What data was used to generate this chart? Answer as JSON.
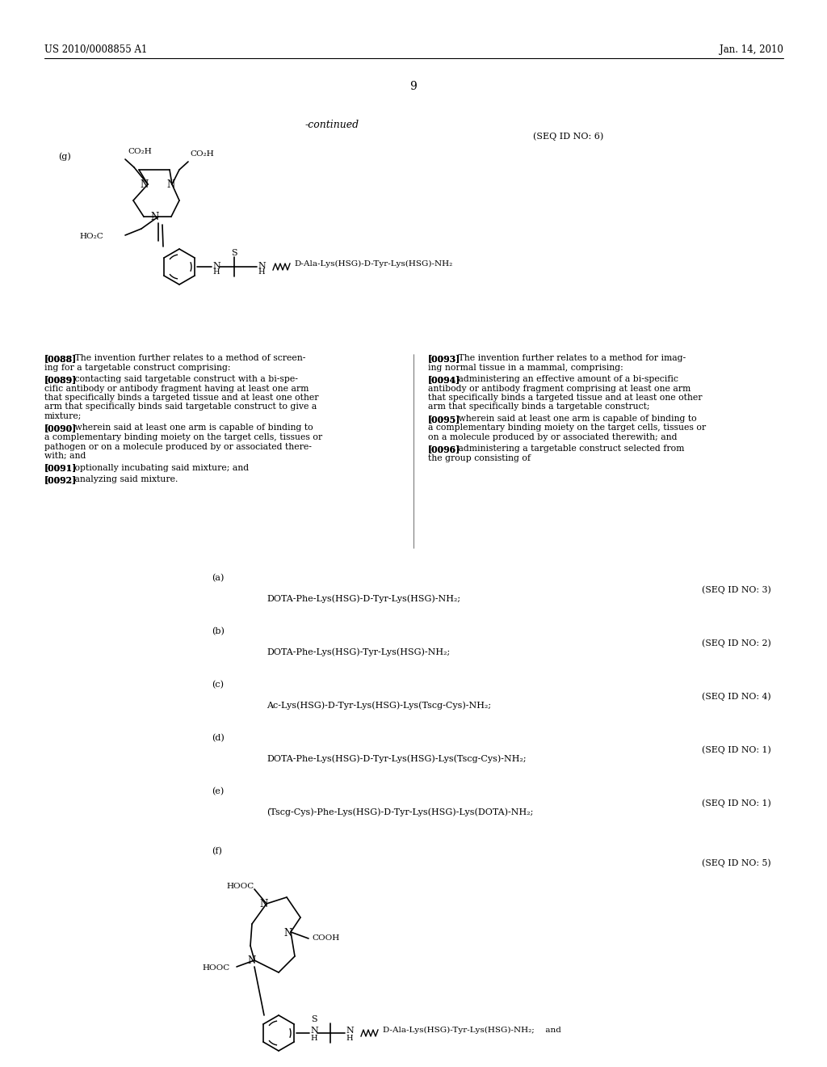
{
  "bg_color": "#ffffff",
  "header_left": "US 2010/0008855 A1",
  "header_right": "Jan. 14, 2010",
  "page_number": "9",
  "continued_label": "-continued",
  "seq_id_6": "(SEQ ID NO: 6)",
  "label_g": "(g)",
  "body_left": [
    [
      "[0088]",
      "   The invention further relates to a method of screen-\ning for a targetable construct comprising:"
    ],
    [
      "[0089]",
      "   contacting said targetable construct with a bi-spe-\ncific antibody or antibody fragment having at least one arm\nthat specifically binds a targeted tissue and at least one other\narm that specifically binds said targetable construct to give a\nmixture;"
    ],
    [
      "[0090]",
      "   wherein said at least one arm is capable of binding to\na complementary binding moiety on the target cells, tissues or\npathogen or on a molecule produced by or associated there-\nwith; and"
    ],
    [
      "[0091]",
      "   optionally incubating said mixture; and"
    ],
    [
      "[0092]",
      "   analyzing said mixture."
    ]
  ],
  "body_right": [
    [
      "[0093]",
      "   The invention further relates to a method for imag-\ning normal tissue in a mammal, comprising:"
    ],
    [
      "[0094]",
      "   administering an effective amount of a bi-specific\nantibody or antibody fragment comprising at least one arm\nthat specifically binds a targeted tissue and at least one other\narm that specifically binds a targetable construct;"
    ],
    [
      "[0095]",
      "   wherein said at least one arm is capable of binding to\na complementary binding moiety on the target cells, tissues or\non a molecule produced by or associated therewith; and"
    ],
    [
      "[0096]",
      "   administering a targetable construct selected from\nthe group consisting of"
    ]
  ],
  "compounds": [
    {
      "label": "(a)",
      "seq": "(SEQ ID NO: 3)",
      "formula": "DOTA-Phe-Lys(HSG)-D-Tyr-Lys(HSG)-NH₂;"
    },
    {
      "label": "(b)",
      "seq": "(SEQ ID NO: 2)",
      "formula": "DOTA-Phe-Lys(HSG)-Tyr-Lys(HSG)-NH₂;"
    },
    {
      "label": "(c)",
      "seq": "(SEQ ID NO: 4)",
      "formula": "Ac-Lys(HSG)-D-Tyr-Lys(HSG)-Lys(Tscg-Cys)-NH₂;"
    },
    {
      "label": "(d)",
      "seq": "(SEQ ID NO: 1)",
      "formula": "DOTA-Phe-Lys(HSG)-D-Tyr-Lys(HSG)-Lys(Tscg-Cys)-NH₂;"
    },
    {
      "label": "(e)",
      "seq": "(SEQ ID NO: 1)",
      "formula": "(Tscg-Cys)-Phe-Lys(HSG)-D-Tyr-Lys(HSG)-Lys(DOTA)-NH₂;"
    }
  ],
  "label_f": "(f)",
  "seq_id_5": "(SEQ ID NO: 5)"
}
